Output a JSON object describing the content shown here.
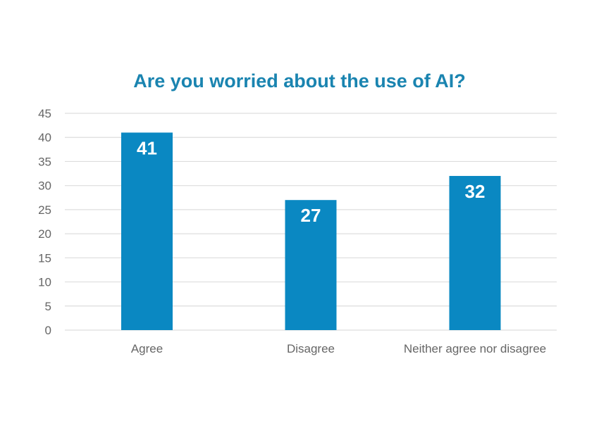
{
  "chart_data": {
    "type": "bar",
    "title": "Are you worried about the use of AI?",
    "categories": [
      "Agree",
      "Disagree",
      "Neither agree nor disagree"
    ],
    "values": [
      41,
      27,
      32
    ],
    "xlabel": "",
    "ylabel": "",
    "ylim": [
      0,
      45
    ],
    "yticks": [
      0,
      5,
      10,
      15,
      20,
      25,
      30,
      35,
      40,
      45
    ],
    "grid": true,
    "legend": "none",
    "data_labels": "inside-top",
    "colors": {
      "bar": "#0a88c2",
      "title": "#1a84b0",
      "grid": "#dddddd",
      "tick_text": "#666666",
      "label_text": "#ffffff"
    }
  }
}
